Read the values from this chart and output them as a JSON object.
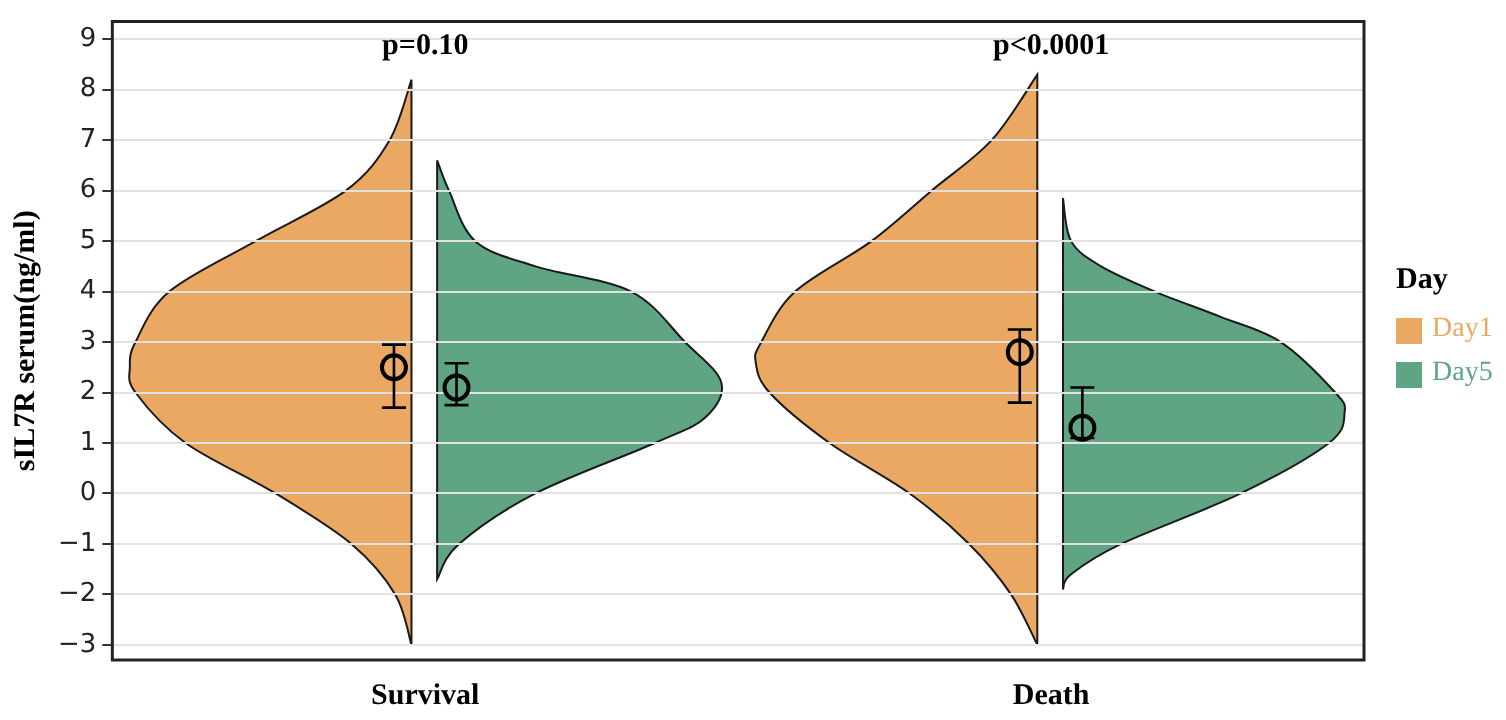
{
  "chart_data": {
    "type": "scatter",
    "ylabel": "sIL7R serum(ng/ml)",
    "legend_title": "Day",
    "legend": "right",
    "grid": "y",
    "marker": "circle",
    "categories": [
      "Survival",
      "Death"
    ],
    "ylim": [
      -3.3,
      9.35
    ],
    "yticks": [
      -3,
      -2,
      -1,
      0,
      1,
      2,
      3,
      4,
      5,
      6,
      7,
      8,
      9
    ],
    "annotations": [
      "p=0.10",
      "p<0.0001"
    ],
    "series": [
      {
        "name": "Day1",
        "color": "#eba862",
        "values": [
          2.5,
          2.8
        ],
        "errors": [
          [
            1.7,
            2.95
          ],
          [
            1.8,
            3.25
          ]
        ]
      },
      {
        "name": "Day5",
        "color": "#5fa583",
        "values": [
          2.1,
          1.3
        ],
        "errors": [
          [
            1.75,
            2.58
          ],
          [
            1.1,
            2.1
          ]
        ]
      }
    ]
  }
}
